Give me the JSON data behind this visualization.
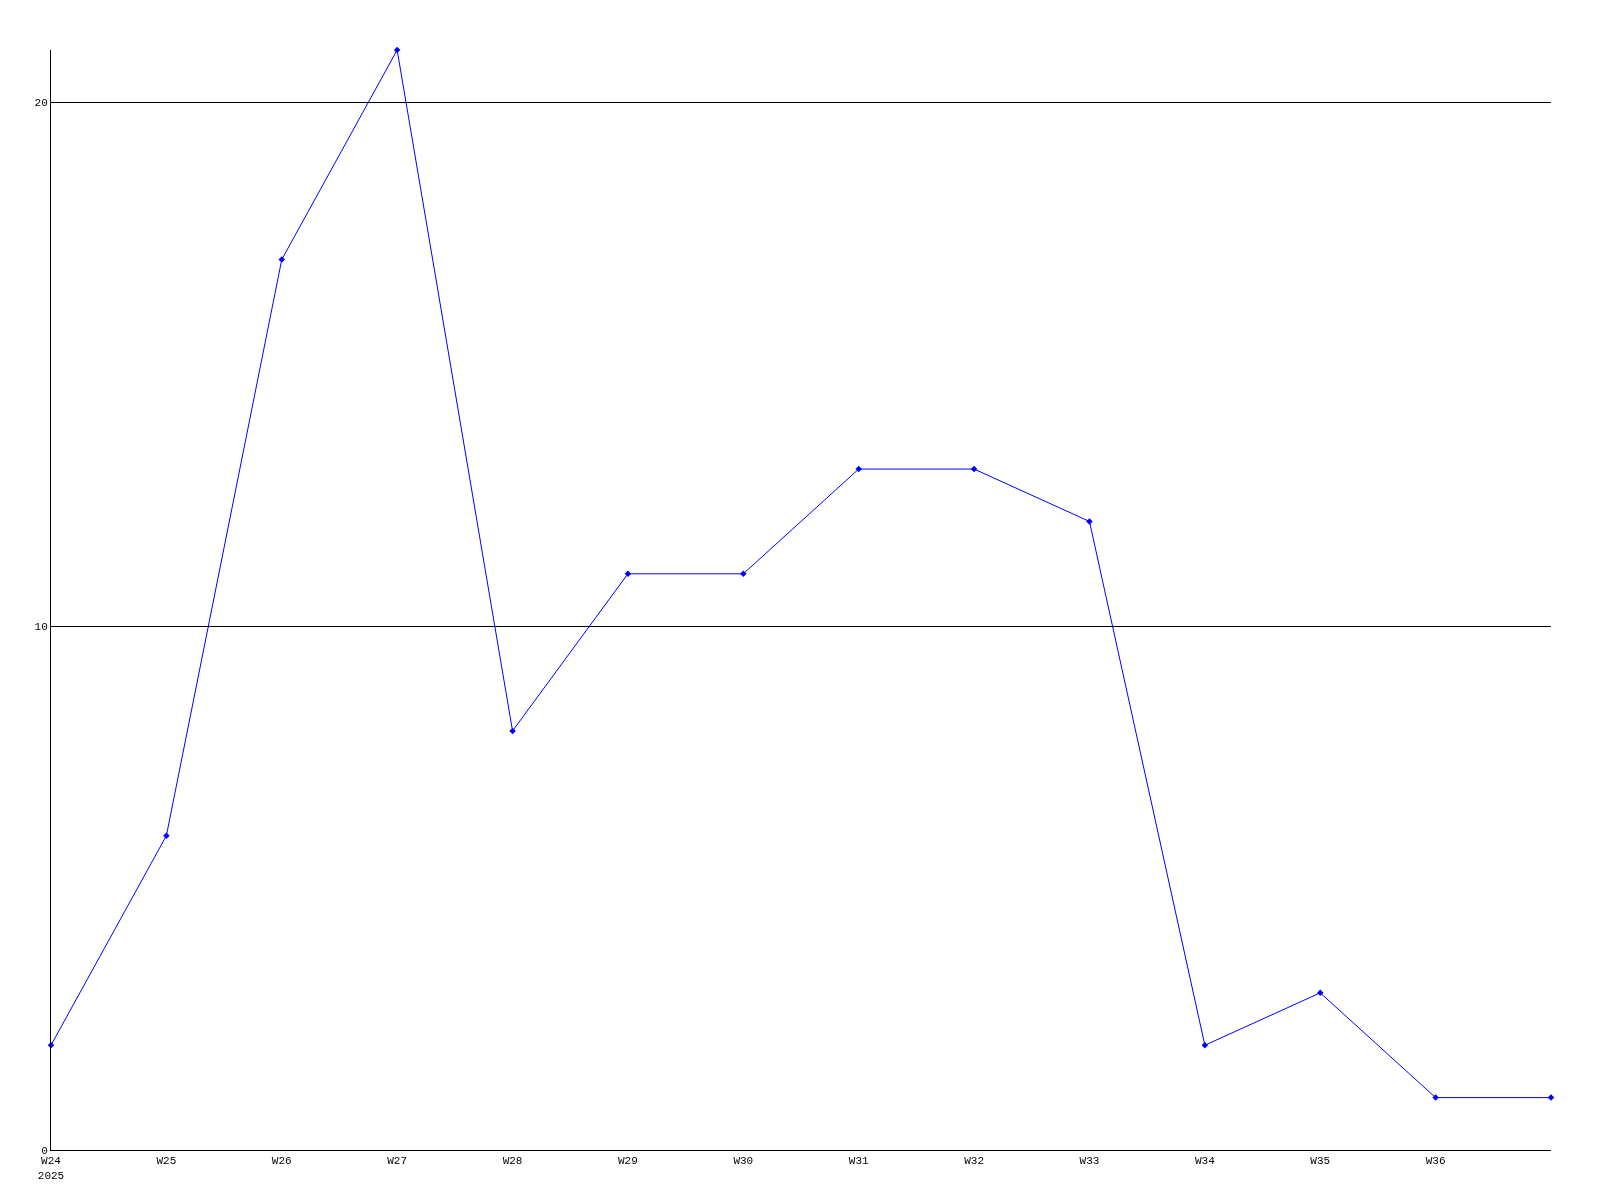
{
  "chart_data": {
    "type": "line",
    "categories": [
      "W24\n2025",
      "W25",
      "W26",
      "W27",
      "W28",
      "W29",
      "W30",
      "W31",
      "W32",
      "W33",
      "W34",
      "W35",
      "W36",
      null
    ],
    "series": [
      {
        "color": "#0000ff",
        "values": [
          2,
          6,
          17,
          21,
          8,
          11,
          11,
          13,
          13,
          12,
          2,
          3,
          1,
          1
        ]
      }
    ],
    "ylim": [
      0,
      21
    ],
    "yticks": [
      0,
      10,
      20
    ],
    "grid": "y",
    "marker": "diamond",
    "line_style": "solid",
    "legend": false
  }
}
